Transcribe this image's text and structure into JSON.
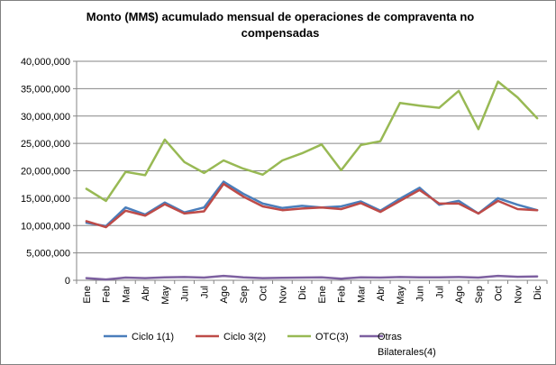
{
  "chart_data": {
    "type": "line",
    "title": "Monto (MM$) acumulado mensual de operaciones de compraventa no compensadas",
    "xlabel": "",
    "ylabel": "",
    "ylim": [
      0,
      40000000
    ],
    "yticks": [
      0,
      5000000,
      10000000,
      15000000,
      20000000,
      25000000,
      30000000,
      35000000,
      40000000
    ],
    "ytick_labels": [
      "0",
      "5,000,000",
      "10,000,000",
      "15,000,000",
      "20,000,000",
      "25,000,000",
      "30,000,000",
      "35,000,000",
      "40,000,000"
    ],
    "grid": true,
    "legend_position": "bottom",
    "categories": [
      "Ene",
      "Feb",
      "Mar",
      "Abr",
      "May",
      "Jun",
      "Jul",
      "Ago",
      "Sep",
      "Oct",
      "Nov",
      "Dic",
      "Ene",
      "Feb",
      "Mar",
      "Abr",
      "May",
      "Jun",
      "Jul",
      "Ago",
      "Sep",
      "Oct",
      "Nov",
      "Dic"
    ],
    "series": [
      {
        "name": "Ciclo 1(1)",
        "color": "#4a7ebb",
        "values": [
          10500000,
          9900000,
          13300000,
          12000000,
          14200000,
          12400000,
          13300000,
          18000000,
          15800000,
          14000000,
          13200000,
          13600000,
          13300000,
          13500000,
          14400000,
          12700000,
          14900000,
          16900000,
          13800000,
          14500000,
          12200000,
          15000000,
          13800000,
          12800000
        ]
      },
      {
        "name": "Ciclo 3(2)",
        "color": "#be4b48",
        "values": [
          10800000,
          9700000,
          12700000,
          11800000,
          13900000,
          12200000,
          12600000,
          17600000,
          15300000,
          13500000,
          12800000,
          13100000,
          13300000,
          13000000,
          14100000,
          12500000,
          14500000,
          16500000,
          14000000,
          14000000,
          12200000,
          14500000,
          13000000,
          12800000
        ]
      },
      {
        "name": "OTC(3)",
        "color": "#98b954",
        "values": [
          16700000,
          14500000,
          19800000,
          19200000,
          25700000,
          21600000,
          19600000,
          21900000,
          20400000,
          19300000,
          21900000,
          23200000,
          24800000,
          20100000,
          24700000,
          25400000,
          32400000,
          31900000,
          31500000,
          34600000,
          27600000,
          36300000,
          33400000,
          29600000
        ]
      },
      {
        "name": "Otras Bilaterales(4)",
        "color": "#7d60a0",
        "values": [
          400000,
          150000,
          500000,
          400000,
          550000,
          600000,
          500000,
          800000,
          550000,
          400000,
          450000,
          500000,
          550000,
          300000,
          550000,
          500000,
          600000,
          550000,
          550000,
          600000,
          500000,
          800000,
          650000,
          700000
        ]
      }
    ]
  }
}
